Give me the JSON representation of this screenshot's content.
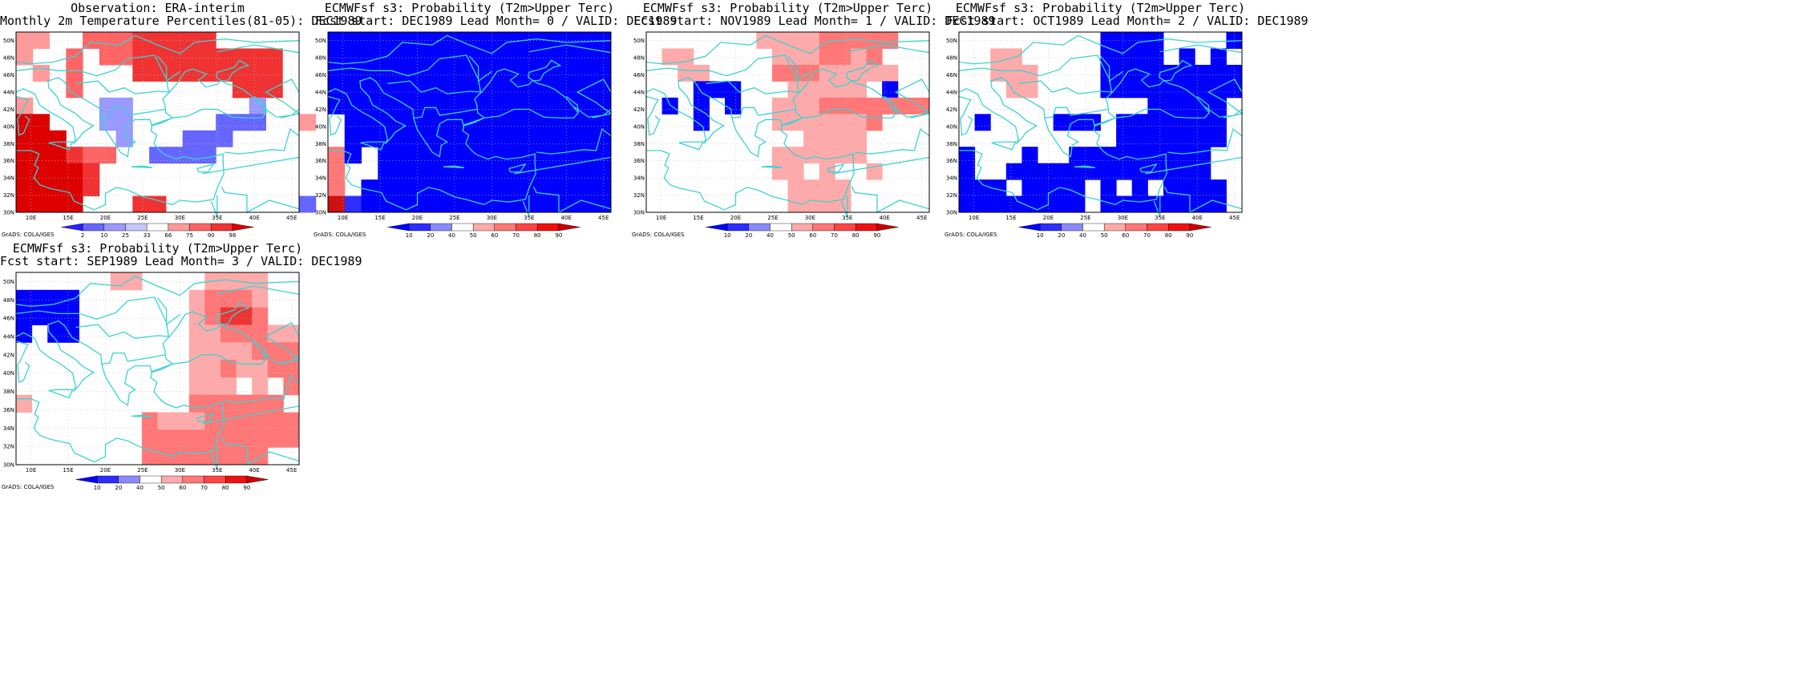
{
  "colors": {
    "coast": "#3cd2d2",
    "grid": "#c0c0c0",
    "frame": "#000000"
  },
  "axes": {
    "lat_labels": [
      "30N",
      "32N",
      "34N",
      "36N",
      "38N",
      "40N",
      "42N",
      "44N",
      "46N",
      "48N",
      "50N"
    ],
    "lon_labels": [
      "10E",
      "15E",
      "20E",
      "25E",
      "30E",
      "35E",
      "40E",
      "45E"
    ],
    "lon_range": [
      8,
      46
    ],
    "lat_range": [
      30,
      51
    ]
  },
  "credit": "GrADS: COLA/IGES",
  "panels": [
    {
      "id": "obs",
      "title_lines": [
        "Observation: ERA-interim",
        "Monthly 2m Temperature Percentiles(81-05): DEC1989"
      ],
      "colorbar_type": "percentile",
      "colorbar_labels": [
        "2",
        "10",
        "25",
        "33",
        "66",
        "75",
        "90",
        "98"
      ],
      "colorbar_colors": [
        "#2222ff",
        "#6666ff",
        "#9999ff",
        "#c6c6ff",
        "#ffffff",
        "#ff9a9a",
        "#ff6464",
        "#f03232",
        "#dd0000"
      ],
      "grid": [
        "000001000002220000",
        "022222000000000000",
        "000000000000000000",
        "800000000000000000",
        "003333000000000000",
        "003333000000330000",
        "000000002222220000",
        "000000000000000000",
        "000000000000000000",
        "000000000000000000",
        "000000000000000000"
      ],
      "cells_note": "encoded probability levels"
    },
    {
      "id": "lead0",
      "title_lines": [
        "ECMWFsf s3: Probability (T2m>Upper Terc)",
        "Fcst start: DEC1989   Lead Month= 0 / VALID: DEC1989"
      ],
      "colorbar_type": "probability",
      "colorbar_labels": [
        "10",
        "20",
        "40",
        "50",
        "60",
        "70",
        "80",
        "90"
      ],
      "colorbar_colors": [
        "#0000ff",
        "#2d2dff",
        "#8a8aff",
        "#ffffff",
        "#ffaaaa",
        "#ff7777",
        "#ff4444",
        "#ee1111",
        "#cc0000"
      ]
    },
    {
      "id": "lead1",
      "title_lines": [
        "ECMWFsf s3: Probability (T2m>Upper Terc)",
        "Fcst start: NOV1989   Lead Month= 1 / VALID: DEC1989"
      ],
      "colorbar_type": "probability",
      "colorbar_labels": [
        "10",
        "20",
        "40",
        "50",
        "60",
        "70",
        "80",
        "90"
      ],
      "colorbar_colors": [
        "#0000ff",
        "#2d2dff",
        "#8a8aff",
        "#ffffff",
        "#ffaaaa",
        "#ff7777",
        "#ff4444",
        "#ee1111",
        "#cc0000"
      ]
    },
    {
      "id": "lead2",
      "title_lines": [
        "ECMWFsf s3: Probability (T2m>Upper Terc)",
        "Fcst start: OCT1989   Lead Month= 2 / VALID: DEC1989"
      ],
      "colorbar_type": "probability",
      "colorbar_labels": [
        "10",
        "20",
        "40",
        "50",
        "60",
        "70",
        "80",
        "90"
      ],
      "colorbar_colors": [
        "#0000ff",
        "#2d2dff",
        "#8a8aff",
        "#ffffff",
        "#ffaaaa",
        "#ff7777",
        "#ff4444",
        "#ee1111",
        "#cc0000"
      ]
    },
    {
      "id": "lead3",
      "title_lines": [
        "ECMWFsf s3: Probability (T2m>Upper Terc)",
        "Fcst start: SEP1989   Lead Month= 3 / VALID: DEC1989"
      ],
      "colorbar_type": "probability",
      "colorbar_labels": [
        "10",
        "20",
        "40",
        "50",
        "60",
        "70",
        "80",
        "90"
      ],
      "colorbar_colors": [
        "#0000ff",
        "#2d2dff",
        "#8a8aff",
        "#ffffff",
        "#ffaaaa",
        "#ff7777",
        "#ff4444",
        "#ee1111",
        "#cc0000"
      ]
    }
  ],
  "fields": {
    "obs": [
      "66xx77788888xxxxx",
      "6xx7x77888888888xx",
      "x6x7xxx888888888xx",
      "xxx7xxxxxxxxx888xx",
      "6xxxx33xxxxxxx3xxx",
      "99xxx33xxxxx222xx6",
      "999xxx3xxx222xxxxx",
      "999877xx2222xxxxxx",
      "99998xxxxxxxxxxxxx",
      "99998xxxxxxxxxxxxx",
      "9999xxx88xxxxxxxx2"
    ],
    "lead0": [
      "11111111111111111",
      "11111111111111111",
      "11111111111111111",
      "11111111111111111",
      "11111111111111111",
      "x1111111111111111",
      "x1111111111111111",
      "61x11111111111111",
      "6xx11111111111111",
      "6x111111111111111",
      "82111111111111111"
    ],
    "lead1": [
      "xxxxxxx555566666xx",
      "x55xxxxx5556656xxx",
      "xx55xxxx66655555xx",
      "xxx111xxx55555x1xx",
      "x1x1x1xx5556666666",
      "xxx1xxxx5555556xxx",
      "xxxxxxxxxx5555xxxx",
      "xxxxxxxx555555xxxx",
      "xxxxxxxx55x5xx5xxx",
      "xxxxxxxxx5555xxxxx",
      "xxxxxxxxx5555xxxxx"
    ],
    "lead2": [
      "xxxxxxxxx1111xxxx1",
      "xx55xxxxx1111x1x1x",
      "xx555xxxx111111111",
      "xxx55xxxx111111111",
      "xxxxxxxxxxxx11111x",
      "x1xxxx111x1111111x",
      "xxxxxxxxxx1111111x",
      "1xxx1xx111111111xx",
      "1xx1111111111111xx",
      "111x1111x1x1x1111x",
      "11111111x11111111x"
    ],
    "lead3": [
      "xxxxxx55xxxx5555xx",
      "1111xxxxxxx56665xx",
      "1111xxxxxxx56776xx",
      "1x11xxxxxxx5566655",
      "xxxxxxxxxxx5555666",
      "xxxxxxxxxxx5565566",
      "xxxxxxxxxxx555x5x6",
      "5xxxxxxxxxx666666x",
      "xxxxxxxx6555666666",
      "xxxxxxxx6666666666",
      "xxxxxxxx66666666xx"
    ]
  }
}
